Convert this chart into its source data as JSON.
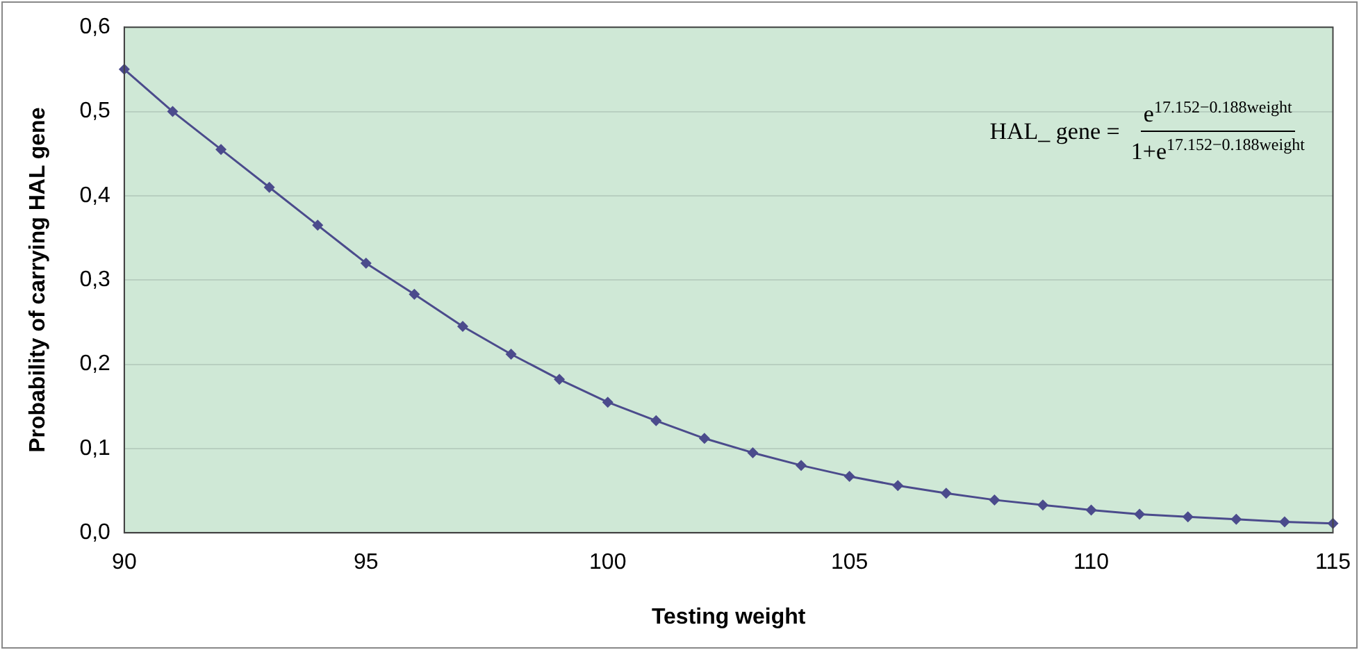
{
  "chart_data": {
    "type": "line",
    "xlabel": "Testing weight",
    "ylabel": "Probability of carrying HAL gene",
    "x": [
      90,
      91,
      92,
      93,
      94,
      95,
      96,
      97,
      98,
      99,
      100,
      101,
      102,
      103,
      104,
      105,
      106,
      107,
      108,
      109,
      110,
      111,
      112,
      113,
      114,
      115
    ],
    "series": [
      {
        "color": "#4b4b8c",
        "values": [
          0.55,
          0.5,
          0.455,
          0.41,
          0.365,
          0.32,
          0.283,
          0.245,
          0.212,
          0.182,
          0.155,
          0.133,
          0.112,
          0.095,
          0.08,
          0.067,
          0.056,
          0.047,
          0.039,
          0.033,
          0.027,
          0.022,
          0.019,
          0.016,
          0.013,
          0.011
        ]
      }
    ],
    "xlim": [
      90,
      115
    ],
    "xticks": [
      90,
      95,
      100,
      105,
      110,
      115
    ],
    "ylim": [
      0,
      0.6
    ],
    "yticks": [
      {
        "value": 0,
        "label": "0,0"
      },
      {
        "value": 0.1,
        "label": "0,1"
      },
      {
        "value": 0.2,
        "label": "0,2"
      },
      {
        "value": 0.3,
        "label": "0,3"
      },
      {
        "value": 0.4,
        "label": "0,4"
      },
      {
        "value": 0.5,
        "label": "0,5"
      },
      {
        "value": 0.6,
        "label": "0,6"
      }
    ],
    "grid": "y",
    "legend": false,
    "marker": "diamond",
    "line_style": "solid",
    "annotations": [
      "HAL_ gene =",
      "e$^{17.152−0.188weight}$",
      "1+e$^{17.152−0.188weight}$"
    ]
  }
}
